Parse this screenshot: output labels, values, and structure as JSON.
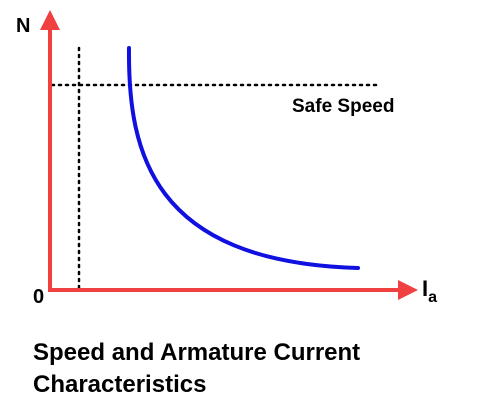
{
  "diagram": {
    "y_axis_label": "N",
    "x_axis_label": "I",
    "x_axis_subscript": "a",
    "origin_label": "0",
    "reference_line_label": "Safe Speed",
    "caption_line1": "Speed and Armature Current",
    "caption_line2": "Characteristics"
  },
  "colors": {
    "axes": "#f04040",
    "curve": "#1010e0",
    "dotted_lines": "#000000",
    "text": "#000000"
  }
}
